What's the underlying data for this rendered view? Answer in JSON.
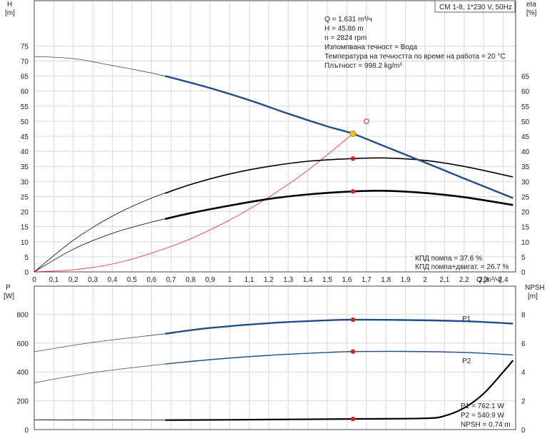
{
  "header_badge": "CM 1-8, 1*230 V, 50Hz",
  "info_lines": [
    "Q = 1.631 m³/ч",
    "H = 45.86 m",
    "n = 2824 rpm",
    "Изпомпвана течност = Вода",
    "Температура на течността по време на работа = 20 °C",
    "Плътност = 998.2 kg/m³"
  ],
  "efficiency_lines": [
    "КПД помпа = 37.6 %",
    "КПД помпа+двигат. = 26.7 %"
  ],
  "power_lines": [
    "P1 = 762.1 W",
    "P2 = 540.9 W",
    "NPSH = 0.74 m"
  ],
  "colors": {
    "head": "#1f4e8c",
    "power": "#1f4e8c",
    "efficiency": "#000000",
    "system": "#ff2222",
    "duty_point": "#f5c518",
    "marker": "#e02020",
    "grid": "#d9d9d9"
  },
  "chart_data": [
    {
      "type": "line",
      "panel": "top",
      "x_axis": {
        "label": "Q [m³/ч]",
        "lim": [
          0,
          2.5
        ],
        "ticks": [
          0,
          0.1,
          0.2,
          0.3,
          0.4,
          0.5,
          0.6,
          0.7,
          0.8,
          0.9,
          1.0,
          1.1,
          1.2,
          1.3,
          1.4,
          1.5,
          1.6,
          1.7,
          1.8,
          1.9,
          2.0,
          2.1,
          2.2,
          2.3,
          2.4
        ],
        "tick_labels": [
          "0",
          "0,1",
          "0,2",
          "0,3",
          "0,4",
          "0,5",
          "0,6",
          "0,7",
          "0,8",
          "0,9",
          "1",
          "1,1",
          "1,2",
          "1,3",
          "1,4",
          "1,5",
          "1,6",
          "1,7",
          "1,8",
          "1,9",
          "2",
          "2,1",
          "2,2",
          "2,3",
          "2,4"
        ],
        "label_parts": [
          "Q",
          "[m³/ч]"
        ]
      },
      "y_left": {
        "label_parts": [
          "H",
          "[m]"
        ],
        "lim": [
          0,
          90
        ],
        "ticks": [
          0,
          5,
          10,
          15,
          20,
          25,
          30,
          35,
          40,
          45,
          50,
          55,
          60,
          65,
          70,
          75
        ]
      },
      "y_right": {
        "label_parts": [
          "eta",
          "[%]"
        ],
        "lim": [
          0,
          90
        ],
        "ticks": [
          0,
          5,
          10,
          15,
          20,
          25,
          30,
          35,
          40,
          45,
          50,
          55,
          60,
          65
        ]
      },
      "series": [
        {
          "key": "head_curve",
          "axis": "left",
          "x": [
            0,
            0.2,
            0.4,
            0.6,
            0.7,
            0.9,
            1.1,
            1.3,
            1.5,
            1.631,
            1.8,
            2.0,
            2.2,
            2.45
          ],
          "y": [
            71.5,
            70.8,
            68.5,
            66,
            64.5,
            61.0,
            57.0,
            52.5,
            48.3,
            45.86,
            41.5,
            36.3,
            31.0,
            24.5
          ],
          "bold_from": 0.67
        },
        {
          "key": "pump_efficiency",
          "axis": "right",
          "x": [
            0,
            0.2,
            0.4,
            0.6,
            0.8,
            1.0,
            1.2,
            1.4,
            1.631,
            1.8,
            2.0,
            2.2,
            2.45
          ],
          "y": [
            0,
            10.5,
            18.5,
            24.5,
            29.0,
            32.5,
            35.0,
            36.7,
            37.6,
            37.8,
            37.0,
            35.0,
            31.5
          ],
          "bold_from": 0.67
        },
        {
          "key": "total_efficiency",
          "axis": "right",
          "x": [
            0,
            0.2,
            0.4,
            0.6,
            0.8,
            1.0,
            1.2,
            1.4,
            1.631,
            1.8,
            2.0,
            2.2,
            2.45
          ],
          "y": [
            0,
            7.5,
            12.8,
            16.5,
            19.5,
            22.0,
            24.2,
            25.7,
            26.7,
            26.9,
            26.2,
            24.8,
            22.2
          ],
          "bold_from": 0.67
        },
        {
          "key": "system_curve",
          "axis": "left",
          "x": [
            0,
            0.2,
            0.4,
            0.6,
            0.8,
            1.0,
            1.2,
            1.4,
            1.631
          ],
          "y": [
            0,
            0.7,
            2.6,
            6.2,
            11.0,
            17.2,
            24.8,
            33.7,
            45.86
          ]
        }
      ],
      "duty_point": {
        "x": 1.631,
        "y": 45.86
      },
      "reference_point": {
        "x": 1.7,
        "y": 50
      },
      "markers": [
        {
          "x": 1.631,
          "y": 37.6
        },
        {
          "x": 1.631,
          "y": 26.7
        }
      ]
    },
    {
      "type": "line",
      "panel": "bottom",
      "y_left": {
        "label_parts": [
          "P",
          "[W]"
        ],
        "lim": [
          0,
          1000
        ],
        "ticks": [
          0,
          200,
          400,
          600,
          800
        ]
      },
      "y_right": {
        "label_parts": [
          "NPSH",
          "[m]"
        ],
        "lim": [
          0,
          10
        ],
        "ticks": [
          0,
          2,
          4,
          6,
          8
        ]
      },
      "series": [
        {
          "key": "P1",
          "name": "P1",
          "axis": "left",
          "x": [
            0,
            0.3,
            0.67,
            0.9,
            1.2,
            1.5,
            1.631,
            1.9,
            2.2,
            2.45
          ],
          "y": [
            540,
            605,
            665,
            705,
            738,
            758,
            762.1,
            760,
            752,
            735
          ],
          "bold_from": 0.67
        },
        {
          "key": "P2",
          "name": "P2",
          "axis": "left",
          "x": [
            0,
            0.3,
            0.67,
            0.9,
            1.2,
            1.5,
            1.631,
            1.9,
            2.2,
            2.45
          ],
          "y": [
            325,
            395,
            455,
            485,
            515,
            535,
            540.9,
            542,
            535,
            518
          ],
          "bold_from": 0.67
        },
        {
          "key": "NPSH",
          "axis": "right",
          "x": [
            0,
            0.67,
            1.0,
            1.631,
            2.0,
            2.1,
            2.2,
            2.3,
            2.4,
            2.45
          ],
          "y": [
            0.68,
            0.66,
            0.68,
            0.74,
            0.78,
            0.95,
            1.5,
            2.5,
            4.0,
            4.8
          ],
          "bold_from": 0.67
        }
      ],
      "markers": [
        {
          "x": 1.631,
          "y": 762.1,
          "axis": "left"
        },
        {
          "x": 1.631,
          "y": 540.9,
          "axis": "left"
        },
        {
          "x": 1.631,
          "y": 0.74,
          "axis": "right"
        }
      ]
    }
  ]
}
